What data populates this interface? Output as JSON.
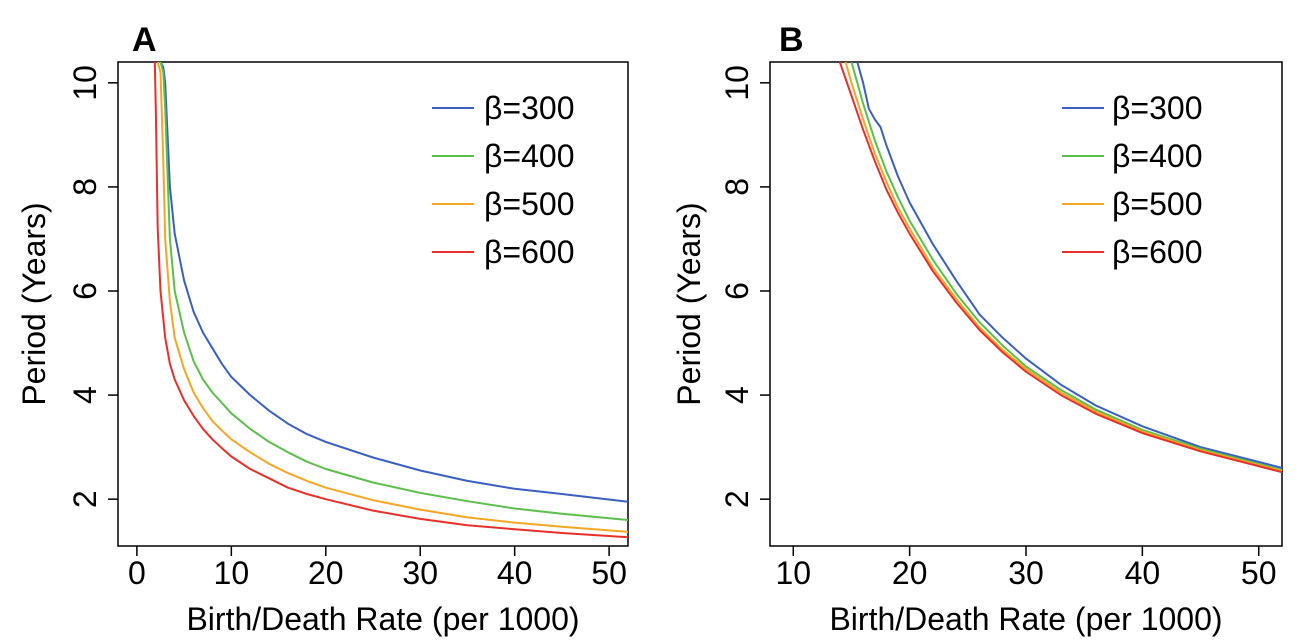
{
  "chart_data": [
    {
      "panel": "A",
      "type": "line",
      "title": "",
      "xlabel": "Birth/Death Rate (per 1000)",
      "ylabel": "Period (Years)",
      "xlim": [
        -2,
        52
      ],
      "ylim": [
        1.1,
        10.4
      ],
      "xticks": [
        "0",
        "10",
        "20",
        "30",
        "40",
        "50"
      ],
      "yticks": [
        "2",
        "4",
        "6",
        "8",
        "10"
      ],
      "legend": "top-right",
      "series": [
        {
          "name": "β=300",
          "color": "#3a5fc0",
          "x": [
            2.2,
            2.5,
            2.8,
            3.0,
            3.5,
            4,
            5,
            6,
            7,
            8,
            9,
            10,
            12,
            14,
            16,
            18,
            20,
            25,
            30,
            35,
            40,
            45,
            52
          ],
          "y": [
            10.4,
            10.4,
            10.3,
            10.0,
            8.0,
            7.1,
            6.2,
            5.6,
            5.2,
            4.9,
            4.6,
            4.35,
            4.0,
            3.7,
            3.45,
            3.25,
            3.1,
            2.8,
            2.55,
            2.35,
            2.2,
            2.1,
            1.95
          ]
        },
        {
          "name": "β=400",
          "color": "#5cbf4c",
          "x": [
            2.2,
            2.5,
            2.8,
            3.0,
            3.5,
            4,
            5,
            6,
            7,
            8,
            9,
            10,
            12,
            14,
            16,
            18,
            20,
            25,
            30,
            35,
            40,
            45,
            52
          ],
          "y": [
            10.4,
            10.4,
            10.2,
            9.5,
            7.0,
            6.0,
            5.2,
            4.65,
            4.3,
            4.05,
            3.85,
            3.65,
            3.35,
            3.1,
            2.9,
            2.72,
            2.58,
            2.32,
            2.12,
            1.96,
            1.82,
            1.72,
            1.6
          ]
        },
        {
          "name": "β=500",
          "color": "#f5a623",
          "x": [
            2.2,
            2.5,
            2.8,
            3.0,
            3.5,
            4,
            5,
            6,
            7,
            8,
            9,
            10,
            12,
            14,
            16,
            18,
            20,
            25,
            30,
            35,
            40,
            45,
            52
          ],
          "y": [
            10.4,
            10.2,
            8.5,
            7.0,
            5.8,
            5.1,
            4.5,
            4.05,
            3.75,
            3.5,
            3.32,
            3.15,
            2.9,
            2.68,
            2.5,
            2.35,
            2.22,
            1.98,
            1.8,
            1.65,
            1.55,
            1.47,
            1.37
          ]
        },
        {
          "name": "β=600",
          "color": "#e8302a",
          "x": [
            1.9,
            2.0,
            2.2,
            2.5,
            3.0,
            3.5,
            4,
            5,
            6,
            7,
            8,
            9,
            10,
            12,
            14,
            16,
            18,
            20,
            25,
            30,
            35,
            40,
            45,
            52
          ],
          "y": [
            10.4,
            9.5,
            7.2,
            6.0,
            5.1,
            4.6,
            4.3,
            3.9,
            3.6,
            3.35,
            3.15,
            2.98,
            2.82,
            2.58,
            2.4,
            2.22,
            2.1,
            2.0,
            1.78,
            1.62,
            1.5,
            1.42,
            1.35,
            1.27
          ]
        }
      ]
    },
    {
      "panel": "B",
      "type": "line",
      "title": "",
      "xlabel": "Birth/Death Rate (per 1000)",
      "ylabel": "Period (Years)",
      "xlim": [
        8,
        52
      ],
      "ylim": [
        1.1,
        10.4
      ],
      "xticks": [
        "10",
        "20",
        "30",
        "40",
        "50"
      ],
      "yticks": [
        "2",
        "4",
        "6",
        "8",
        "10"
      ],
      "legend": "top-right",
      "series": [
        {
          "name": "β=300",
          "color": "#3a5fc0",
          "x": [
            15.5,
            16,
            16.5,
            17,
            17.5,
            18,
            18.5,
            19,
            20,
            22,
            24,
            26,
            28,
            30,
            33,
            36,
            40,
            45,
            52
          ],
          "y": [
            10.4,
            10.0,
            9.5,
            9.3,
            9.15,
            8.8,
            8.5,
            8.2,
            7.7,
            6.9,
            6.2,
            5.55,
            5.1,
            4.7,
            4.2,
            3.8,
            3.4,
            3.0,
            2.6
          ]
        },
        {
          "name": "β=400",
          "color": "#5cbf4c",
          "x": [
            15,
            16,
            17,
            18,
            19,
            20,
            22,
            24,
            26,
            28,
            30,
            33,
            36,
            40,
            45,
            52
          ],
          "y": [
            10.4,
            9.6,
            8.9,
            8.3,
            7.8,
            7.35,
            6.6,
            5.95,
            5.4,
            4.95,
            4.55,
            4.1,
            3.72,
            3.33,
            2.97,
            2.56
          ]
        },
        {
          "name": "β=500",
          "color": "#f5a623",
          "x": [
            14.5,
            15,
            16,
            17,
            18,
            19,
            20,
            22,
            24,
            26,
            28,
            30,
            33,
            36,
            40,
            45,
            52
          ],
          "y": [
            10.4,
            10.0,
            9.3,
            8.65,
            8.1,
            7.6,
            7.2,
            6.45,
            5.85,
            5.3,
            4.87,
            4.5,
            4.05,
            3.68,
            3.3,
            2.94,
            2.54
          ]
        },
        {
          "name": "β=600",
          "color": "#e8302a",
          "x": [
            14,
            15,
            16,
            17,
            18,
            19,
            20,
            22,
            24,
            26,
            28,
            30,
            33,
            36,
            40,
            45,
            52
          ],
          "y": [
            10.4,
            9.75,
            9.1,
            8.5,
            7.95,
            7.5,
            7.1,
            6.38,
            5.78,
            5.25,
            4.82,
            4.45,
            4.0,
            3.64,
            3.27,
            2.92,
            2.52
          ]
        }
      ]
    }
  ]
}
